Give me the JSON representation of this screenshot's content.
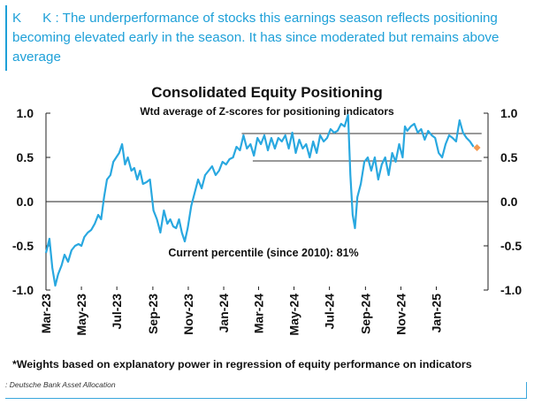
{
  "callout": {
    "prefix_a": "K",
    "prefix_b": "K",
    "text": ": The underperformance of stocks this earnings season reflects positioning becoming elevated early in the season. It has since moderated but remains above average"
  },
  "footnote": "*Weights based on explanatory power in regression of equity performance on indicators",
  "source": ": Deutsche Bank Asset Allocation",
  "colors": {
    "accent": "#1ea0d8",
    "line": "#29a8e0",
    "marker": "#f39a53",
    "reference": "#333333"
  },
  "chart_data": {
    "type": "line",
    "title": "Consolidated Equity Positioning",
    "subtitle": "Wtd average of Z-scores for positioning indicators",
    "annotation": "Current percentile (since 2010): 81%",
    "ylim": [
      -1.0,
      1.0
    ],
    "yticks": [
      "1.0",
      "0.5",
      "0.0",
      "-0.5",
      "-1.0"
    ],
    "ytick_values": [
      1.0,
      0.5,
      0.0,
      -0.5,
      -1.0
    ],
    "xlim": [
      "2023-03-01",
      "2025-03-31"
    ],
    "xticks": [
      "Mar-23",
      "May-23",
      "Jul-23",
      "Sep-23",
      "Nov-23",
      "Jan-24",
      "Mar-24",
      "May-24",
      "Jul-24",
      "Sep-24",
      "Nov-24",
      "Jan-25"
    ],
    "xtick_dates": [
      "2023-03-01",
      "2023-05-01",
      "2023-07-01",
      "2023-09-01",
      "2023-11-01",
      "2024-01-01",
      "2024-03-01",
      "2024-05-01",
      "2024-07-01",
      "2024-09-01",
      "2024-11-01",
      "2025-01-01"
    ],
    "reference_lines": [
      {
        "y": 0.77,
        "x_start": "2024-02-01",
        "x_end": "2025-03-20"
      },
      {
        "y": 0.46,
        "x_start": "2024-02-20",
        "x_end": "2025-03-20"
      }
    ],
    "series": [
      {
        "x": [
          "2023-03-01",
          "2023-03-07",
          "2023-03-12",
          "2023-03-17",
          "2023-03-22",
          "2023-03-28",
          "2023-04-02",
          "2023-04-08",
          "2023-04-14",
          "2023-04-20",
          "2023-04-26",
          "2023-05-01",
          "2023-05-06",
          "2023-05-12",
          "2023-05-18",
          "2023-05-24",
          "2023-05-30",
          "2023-06-04",
          "2023-06-09",
          "2023-06-14",
          "2023-06-20",
          "2023-06-25",
          "2023-06-30",
          "2023-07-05",
          "2023-07-10",
          "2023-07-15",
          "2023-07-20",
          "2023-07-26",
          "2023-07-31",
          "2023-08-05",
          "2023-08-10",
          "2023-08-15",
          "2023-08-21",
          "2023-08-27",
          "2023-09-02",
          "2023-09-08",
          "2023-09-14",
          "2023-09-20",
          "2023-09-26",
          "2023-10-01",
          "2023-10-06",
          "2023-10-11",
          "2023-10-16",
          "2023-10-21",
          "2023-10-26",
          "2023-10-31",
          "2023-11-06",
          "2023-11-12",
          "2023-11-18",
          "2023-11-24",
          "2023-11-30",
          "2023-12-06",
          "2023-12-12",
          "2023-12-18",
          "2023-12-24",
          "2023-12-30",
          "2024-01-05",
          "2024-01-11",
          "2024-01-17",
          "2024-01-23",
          "2024-01-29",
          "2024-02-04",
          "2024-02-10",
          "2024-02-16",
          "2024-02-22",
          "2024-02-28",
          "2024-03-05",
          "2024-03-11",
          "2024-03-17",
          "2024-03-23",
          "2024-03-29",
          "2024-04-04",
          "2024-04-10",
          "2024-04-16",
          "2024-04-22",
          "2024-04-28",
          "2024-05-04",
          "2024-05-10",
          "2024-05-16",
          "2024-05-22",
          "2024-05-28",
          "2024-06-03",
          "2024-06-09",
          "2024-06-15",
          "2024-06-21",
          "2024-06-27",
          "2024-07-03",
          "2024-07-09",
          "2024-07-15",
          "2024-07-21",
          "2024-07-27",
          "2024-08-02",
          "2024-08-06",
          "2024-08-10",
          "2024-08-14",
          "2024-08-18",
          "2024-08-24",
          "2024-08-30",
          "2024-09-05",
          "2024-09-11",
          "2024-09-17",
          "2024-09-23",
          "2024-09-29",
          "2024-10-05",
          "2024-10-11",
          "2024-10-17",
          "2024-10-23",
          "2024-10-29",
          "2024-11-04",
          "2024-11-08",
          "2024-11-12",
          "2024-11-18",
          "2024-11-24",
          "2024-11-30",
          "2024-12-06",
          "2024-12-12",
          "2024-12-18",
          "2024-12-24",
          "2024-12-30",
          "2025-01-05",
          "2025-01-11",
          "2025-01-17",
          "2025-01-23",
          "2025-01-29",
          "2025-02-04",
          "2025-02-10",
          "2025-02-16",
          "2025-02-22",
          "2025-02-28",
          "2025-03-06"
        ],
        "values": [
          -0.58,
          -0.42,
          -0.75,
          -0.95,
          -0.82,
          -0.72,
          -0.6,
          -0.68,
          -0.55,
          -0.5,
          -0.48,
          -0.5,
          -0.4,
          -0.35,
          -0.32,
          -0.25,
          -0.15,
          -0.2,
          0.05,
          0.25,
          0.3,
          0.45,
          0.5,
          0.55,
          0.65,
          0.42,
          0.5,
          0.35,
          0.38,
          0.25,
          0.35,
          0.2,
          0.22,
          0.25,
          -0.1,
          -0.2,
          -0.35,
          -0.1,
          -0.25,
          -0.2,
          -0.28,
          -0.3,
          -0.2,
          -0.35,
          -0.45,
          -0.3,
          -0.05,
          0.1,
          0.25,
          0.15,
          0.3,
          0.35,
          0.4,
          0.3,
          0.35,
          0.45,
          0.42,
          0.48,
          0.5,
          0.62,
          0.58,
          0.75,
          0.6,
          0.65,
          0.52,
          0.72,
          0.65,
          0.75,
          0.58,
          0.72,
          0.6,
          0.72,
          0.68,
          0.75,
          0.6,
          0.78,
          0.55,
          0.7,
          0.6,
          0.65,
          0.5,
          0.68,
          0.55,
          0.75,
          0.68,
          0.72,
          0.82,
          0.78,
          0.8,
          0.88,
          0.85,
          0.98,
          0.3,
          -0.15,
          -0.3,
          0.05,
          0.2,
          0.45,
          0.5,
          0.35,
          0.5,
          0.25,
          0.42,
          0.5,
          0.3,
          0.55,
          0.45,
          0.65,
          0.5,
          0.85,
          0.8,
          0.85,
          0.88,
          0.78,
          0.82,
          0.7,
          0.8,
          0.75,
          0.72,
          0.55,
          0.5,
          0.65,
          0.75,
          0.72,
          0.68,
          0.92,
          0.78,
          0.72,
          0.68,
          0.62
        ]
      }
    ],
    "current_point": {
      "x": "2025-03-12",
      "y": 0.61
    }
  }
}
